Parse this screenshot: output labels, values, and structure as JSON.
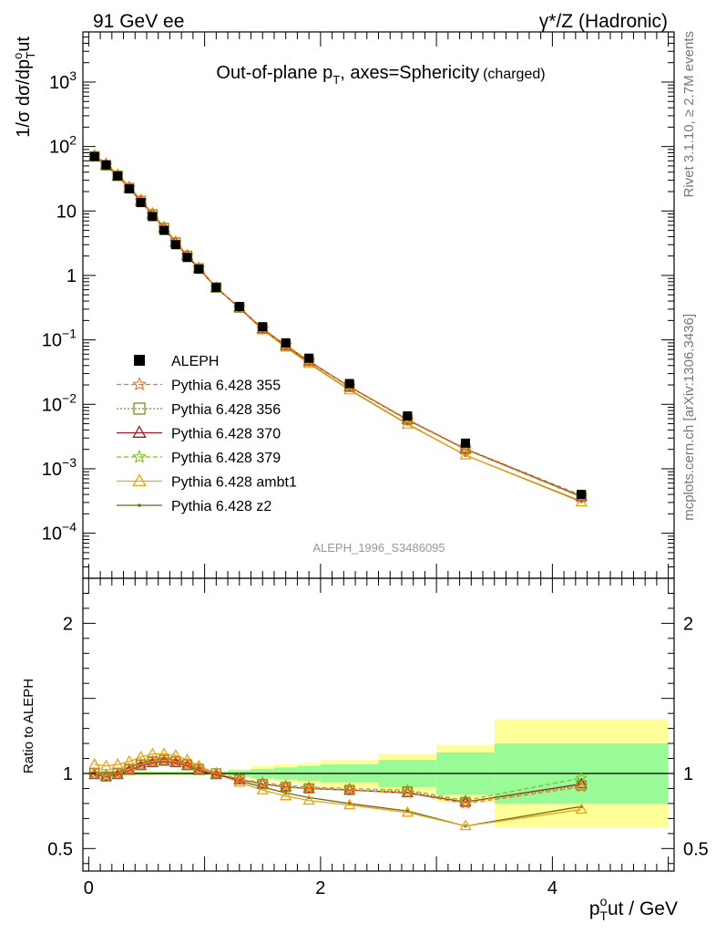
{
  "header": {
    "left": "91 GeV ee",
    "right": "γ*/Z (Hadronic)",
    "title_main": "Out-of-plane p",
    "title_sub": "T",
    "title_rest": ", axes=Sphericity",
    "title_small": "(charged)"
  },
  "side": {
    "rivet": "Rivet 3.1.10, ≥ 2.7M events",
    "mcplots": "mcplots.cern.ch [arXiv:1306.3436]"
  },
  "analysis_id": "ALEPH_1996_S3486095",
  "colors": {
    "data": "#000000",
    "p355": "#ff6d22",
    "p356": "#7c8f1f",
    "p370": "#9b1b2b",
    "p379": "#7cc21d",
    "ambt1": "#f2a20c",
    "z2": "#6b6a1c",
    "band_inner": "#98fb98",
    "band_outer": "#ffff99"
  },
  "chart_data": [
    {
      "type": "scatter",
      "ylabel_main": "1/σ dσ/dp",
      "ylabel_sup": "o",
      "ylabel_sub": "T",
      "ylabel_end": "ut",
      "yscale": "log",
      "xlim": [
        -0.05,
        5.05
      ],
      "ylim": [
        2e-05,
        6000
      ],
      "yticks": [
        {
          "v": 0.0001,
          "base": "10",
          "exp": "−4"
        },
        {
          "v": 0.001,
          "base": "10",
          "exp": "−3"
        },
        {
          "v": 0.01,
          "base": "10",
          "exp": "−2"
        },
        {
          "v": 0.1,
          "base": "10",
          "exp": "−1"
        },
        {
          "v": 1,
          "base": "1",
          "exp": ""
        },
        {
          "v": 10,
          "base": "10",
          "exp": ""
        },
        {
          "v": 100,
          "base": "10",
          "exp": "2"
        },
        {
          "v": 1000,
          "base": "10",
          "exp": "3"
        }
      ],
      "x": [
        0.05,
        0.15,
        0.25,
        0.35,
        0.45,
        0.55,
        0.65,
        0.75,
        0.85,
        0.95,
        1.1,
        1.3,
        1.5,
        1.7,
        1.9,
        2.25,
        2.75,
        3.25,
        4.25
      ],
      "data": {
        "name": "ALEPH",
        "values": [
          70,
          52,
          35,
          22,
          13.5,
          8.2,
          5.0,
          3.0,
          1.9,
          1.25,
          0.65,
          0.33,
          0.16,
          0.09,
          0.052,
          0.021,
          0.0066,
          0.0025,
          0.0004
        ]
      },
      "legend": [
        {
          "key": "data",
          "label": "ALEPH"
        },
        {
          "key": "p355",
          "label": "Pythia 6.428 355"
        },
        {
          "key": "p356",
          "label": "Pythia 6.428 356"
        },
        {
          "key": "p370",
          "label": "Pythia 6.428 370"
        },
        {
          "key": "p379",
          "label": "Pythia 6.428 379"
        },
        {
          "key": "ambt1",
          "label": "Pythia 6.428 ambt1"
        },
        {
          "key": "z2",
          "label": "Pythia 6.428 z2"
        }
      ]
    },
    {
      "type": "line",
      "ylabel": "Ratio to ALEPH",
      "xlabel_main": "p",
      "xlabel_sup": "o",
      "xlabel_sub": "T",
      "xlabel_end": "ut / GeV",
      "xlim": [
        -0.05,
        5.05
      ],
      "ylim": [
        0.35,
        2.3
      ],
      "yticks": [
        {
          "v": 0.5,
          "label": "0.5"
        },
        {
          "v": 1,
          "label": "1"
        },
        {
          "v": 2,
          "label": "2"
        }
      ],
      "xticks": [
        {
          "v": 0,
          "label": "0"
        },
        {
          "v": 2,
          "label": "2"
        },
        {
          "v": 4,
          "label": "4"
        }
      ],
      "x": [
        0.05,
        0.15,
        0.25,
        0.35,
        0.45,
        0.55,
        0.65,
        0.75,
        0.85,
        0.95,
        1.1,
        1.3,
        1.5,
        1.7,
        1.9,
        2.25,
        2.75,
        3.25,
        4.25
      ],
      "bands": [
        {
          "x0": 0.0,
          "x1": 1.2,
          "inner": 0.01,
          "outer": 0.015
        },
        {
          "x0": 1.2,
          "x1": 1.4,
          "inner": 0.02,
          "outer": 0.03
        },
        {
          "x0": 1.4,
          "x1": 1.6,
          "inner": 0.03,
          "outer": 0.05
        },
        {
          "x0": 1.6,
          "x1": 1.8,
          "inner": 0.04,
          "outer": 0.06
        },
        {
          "x0": 1.8,
          "x1": 2.0,
          "inner": 0.05,
          "outer": 0.07
        },
        {
          "x0": 2.0,
          "x1": 2.5,
          "inner": 0.06,
          "outer": 0.09
        },
        {
          "x0": 2.5,
          "x1": 3.0,
          "inner": 0.09,
          "outer": 0.13
        },
        {
          "x0": 3.0,
          "x1": 3.5,
          "inner": 0.14,
          "outer": 0.19
        },
        {
          "x0": 3.5,
          "x1": 5.0,
          "inner": 0.2,
          "outer": 0.36
        }
      ],
      "series": [
        {
          "key": "p355",
          "name": "Pythia 6.428 355",
          "marker": "star",
          "dash": "5,3",
          "values": [
            1.0,
            0.98,
            1.0,
            1.03,
            1.06,
            1.08,
            1.09,
            1.08,
            1.06,
            1.03,
            1.0,
            0.96,
            0.93,
            0.91,
            0.9,
            0.89,
            0.87,
            0.8,
            0.91
          ]
        },
        {
          "key": "p356",
          "name": "Pythia 6.428 356",
          "marker": "square",
          "dash": "2,2",
          "values": [
            1.0,
            0.98,
            1.0,
            1.03,
            1.06,
            1.08,
            1.09,
            1.08,
            1.06,
            1.03,
            1.0,
            0.96,
            0.93,
            0.91,
            0.9,
            0.89,
            0.88,
            0.81,
            0.92
          ]
        },
        {
          "key": "p370",
          "name": "Pythia 6.428 370",
          "marker": "triangle",
          "dash": "",
          "values": [
            0.99,
            0.98,
            0.99,
            1.02,
            1.05,
            1.07,
            1.08,
            1.07,
            1.05,
            1.02,
            0.99,
            0.96,
            0.93,
            0.91,
            0.9,
            0.89,
            0.87,
            0.81,
            0.93
          ]
        },
        {
          "key": "p379",
          "name": "Pythia 6.428 379",
          "marker": "star",
          "dash": "5,3",
          "values": [
            1.0,
            0.99,
            1.0,
            1.03,
            1.06,
            1.08,
            1.09,
            1.08,
            1.06,
            1.03,
            1.0,
            0.96,
            0.94,
            0.92,
            0.91,
            0.9,
            0.89,
            0.82,
            0.97
          ]
        },
        {
          "key": "ambt1",
          "name": "Pythia 6.428 ambt1",
          "marker": "triangle",
          "dash": "",
          "values": [
            1.06,
            1.05,
            1.06,
            1.08,
            1.11,
            1.13,
            1.13,
            1.12,
            1.09,
            1.05,
            1.0,
            0.94,
            0.89,
            0.85,
            0.82,
            0.79,
            0.74,
            0.65,
            0.76
          ]
        },
        {
          "key": "z2",
          "name": "Pythia 6.428 z2",
          "marker": "dot",
          "dash": "",
          "values": [
            1.0,
            1.0,
            1.01,
            1.04,
            1.07,
            1.09,
            1.1,
            1.09,
            1.07,
            1.03,
            1.0,
            0.95,
            0.91,
            0.87,
            0.84,
            0.8,
            0.75,
            0.65,
            0.78
          ]
        }
      ]
    }
  ]
}
